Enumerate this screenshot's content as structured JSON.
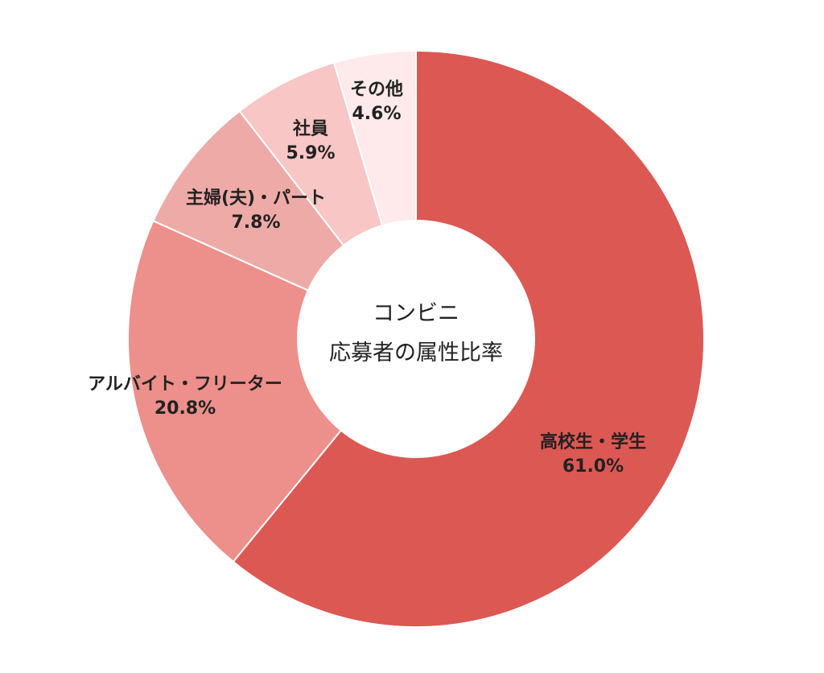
{
  "chart_data": {
    "type": "pie",
    "title": "",
    "center_label": {
      "line1": "コンビニ",
      "line2": "応募者の属性比率"
    },
    "slices": [
      {
        "label": "高校生・学生",
        "value": 61.0,
        "value_label": "61.0%",
        "color": "#dc5853"
      },
      {
        "label": "アルバイト・フリーター",
        "value": 20.8,
        "value_label": "20.8%",
        "color": "#ed8f8b"
      },
      {
        "label": "主婦(夫)・パート",
        "value": 7.8,
        "value_label": "7.8%",
        "color": "#eeaaa7"
      },
      {
        "label": "社員",
        "value": 5.9,
        "value_label": "5.9%",
        "color": "#f8c6c5"
      },
      {
        "label": "その他",
        "value": 4.6,
        "value_label": "4.6%",
        "color": "#feeaea"
      }
    ],
    "legend": "none"
  }
}
